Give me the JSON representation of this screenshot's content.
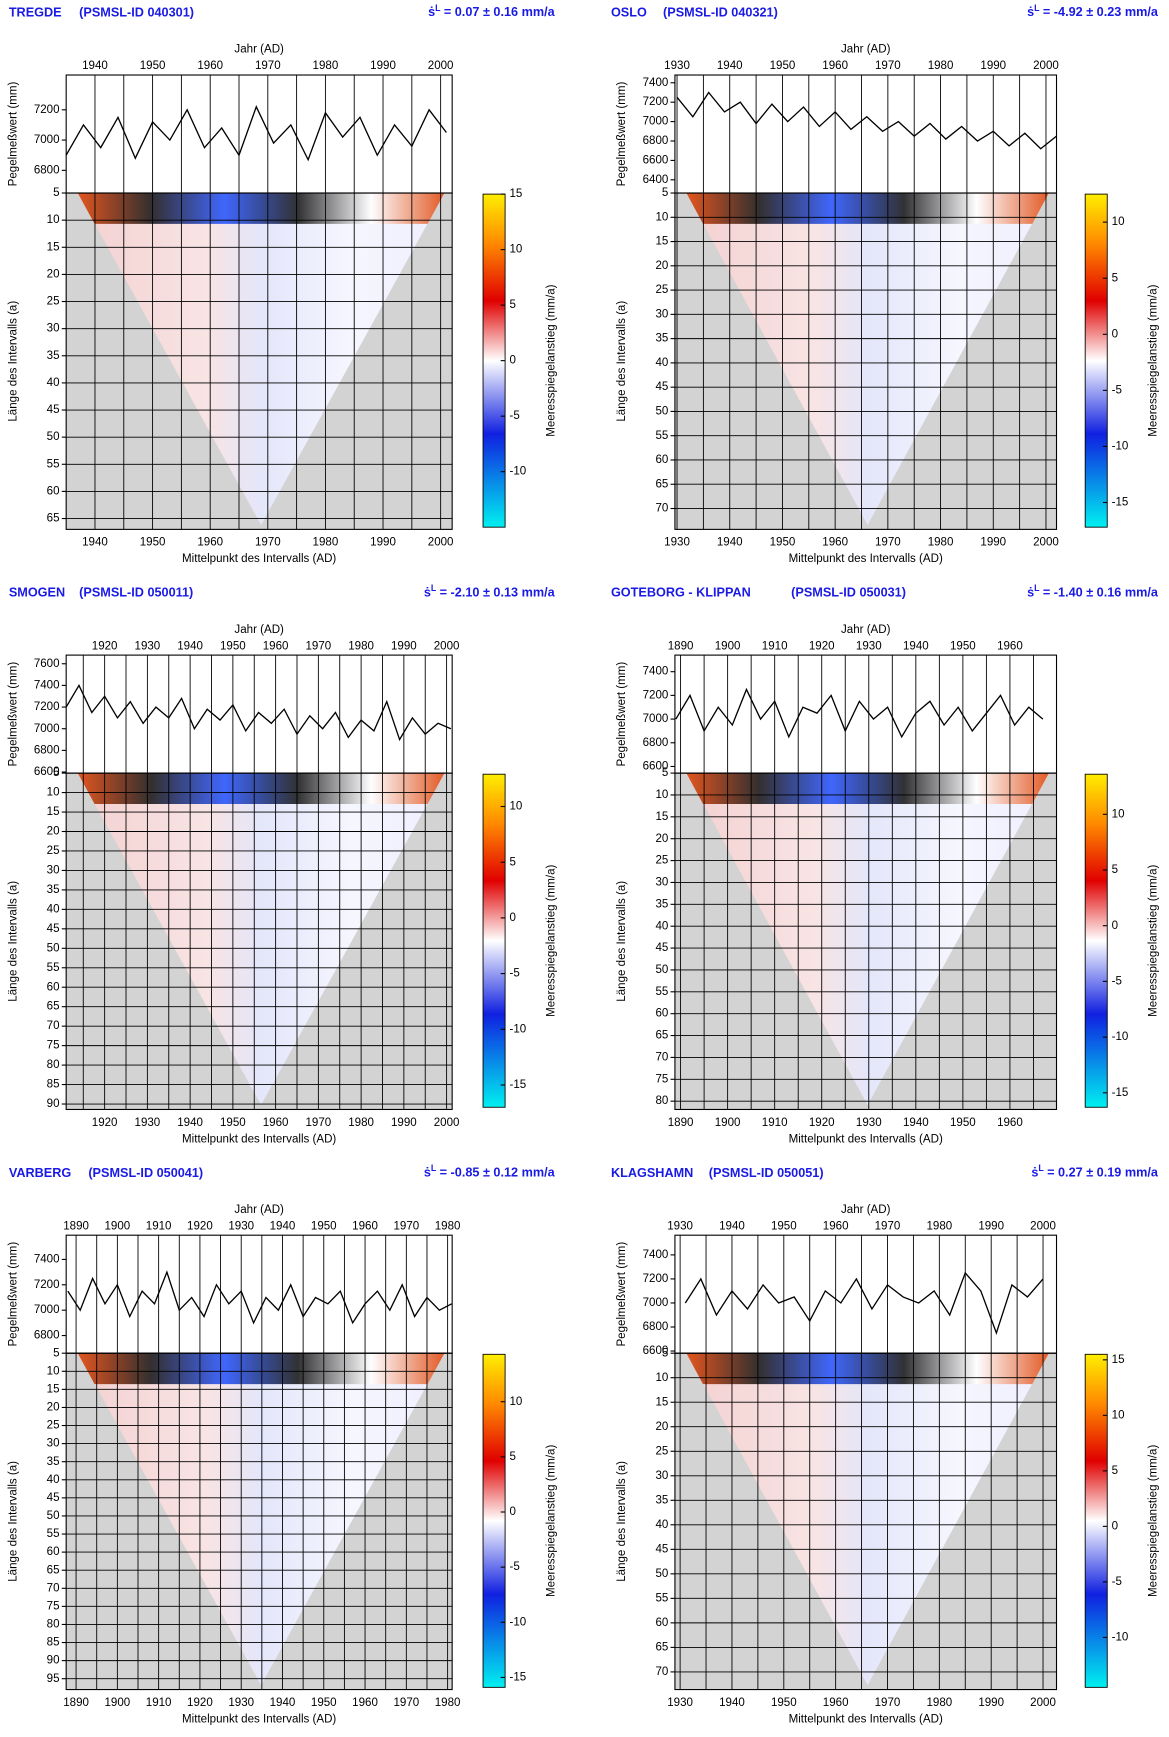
{
  "chart_data": [
    {
      "type": "line",
      "title": "TREGDE",
      "subtitle": "(PSMSL-ID 040301)",
      "trend_symbol": "ṡ",
      "trend_sup": "L",
      "trend_text": "= 0.07 ± 0.16 mm/a",
      "xlabel_top": "Jahr (AD)",
      "xlabel_bottom": "Mittelpunkt des Intervalls (AD)",
      "ylabel": "Pegelmeßwert (mm)",
      "ylabel_interval": "Länge des Intervalls (a)",
      "colorbar_label": "Meeresspiegelanstieg (mm/a)",
      "xlim": [
        1935,
        2002
      ],
      "xticks": [
        1940,
        1950,
        1960,
        1970,
        1980,
        1990,
        2000
      ],
      "ylim": [
        6650,
        7430
      ],
      "yticks": [
        6800,
        7000,
        7200
      ],
      "interval_ylim": [
        5,
        67
      ],
      "interval_yticks": [
        5,
        10,
        15,
        20,
        25,
        30,
        35,
        40,
        45,
        50,
        55,
        60,
        65
      ],
      "clim": [
        -15,
        15
      ],
      "cticks": [
        15,
        10,
        5,
        0,
        -5,
        -10
      ],
      "grid": true,
      "color": "#000000",
      "x": [
        1935,
        1938,
        1941,
        1944,
        1947,
        1950,
        1953,
        1956,
        1959,
        1962,
        1965,
        1968,
        1971,
        1974,
        1977,
        1980,
        1983,
        1986,
        1989,
        1992,
        1995,
        1998,
        2001
      ],
      "values": [
        6900,
        7100,
        6950,
        7150,
        6880,
        7120,
        7000,
        7200,
        6950,
        7080,
        6900,
        7220,
        6980,
        7100,
        6870,
        7180,
        7020,
        7150,
        6900,
        7100,
        6960,
        7200,
        7050
      ]
    },
    {
      "type": "line",
      "title": "OSLO",
      "subtitle": "(PSMSL-ID 040321)",
      "trend_symbol": "ṡ",
      "trend_sup": "L",
      "trend_text": "= -4.92 ± 0.23 mm/a",
      "xlabel_top": "Jahr (AD)",
      "xlabel_bottom": "Mittelpunkt des Intervalls (AD)",
      "ylabel": "Pegelmeßwert (mm)",
      "ylabel_interval": "Länge des Intervalls (a)",
      "colorbar_label": "Meeresspiegelanstieg (mm/a)",
      "xlim": [
        1929.6,
        2002
      ],
      "xticks": [
        1930,
        1940,
        1950,
        1960,
        1970,
        1980,
        1990,
        2000
      ],
      "ylim": [
        6264,
        7480
      ],
      "yticks": [
        6400,
        6600,
        6800,
        7000,
        7200,
        7400
      ],
      "interval_ylim": [
        5,
        74.3
      ],
      "interval_yticks": [
        5,
        10,
        15,
        20,
        25,
        30,
        35,
        40,
        45,
        50,
        55,
        60,
        65,
        70
      ],
      "clim": [
        -17.2,
        12.5
      ],
      "cticks": [
        10,
        5,
        0,
        -5,
        -10,
        -15
      ],
      "grid": true,
      "color": "#000000",
      "x": [
        1930,
        1933,
        1936,
        1939,
        1942,
        1945,
        1948,
        1951,
        1954,
        1957,
        1960,
        1963,
        1966,
        1969,
        1972,
        1975,
        1978,
        1981,
        1984,
        1987,
        1990,
        1993,
        1996,
        1999,
        2002
      ],
      "values": [
        7250,
        7050,
        7300,
        7100,
        7200,
        6980,
        7180,
        7000,
        7150,
        6950,
        7100,
        6920,
        7050,
        6900,
        7000,
        6850,
        6980,
        6820,
        6950,
        6800,
        6900,
        6750,
        6880,
        6720,
        6850
      ]
    },
    {
      "type": "line",
      "title": "SMOGEN",
      "subtitle": "(PSMSL-ID 050011)",
      "trend_symbol": "ṡ",
      "trend_sup": "L",
      "trend_text": "= -2.10 ± 0.13 mm/a",
      "xlabel_top": "Jahr (AD)",
      "xlabel_bottom": "Mittelpunkt des Intervalls (AD)",
      "ylabel": "Pegelmeßwert (mm)",
      "ylabel_interval": "Länge des Intervalls (a)",
      "colorbar_label": "Meeresspiegelanstieg (mm/a)",
      "xlim": [
        1911,
        2001.3
      ],
      "xticks": [
        1920,
        1930,
        1940,
        1950,
        1960,
        1970,
        1980,
        1990,
        2000
      ],
      "ylim": [
        6590,
        7680
      ],
      "yticks": [
        6600,
        6800,
        7000,
        7200,
        7400,
        7600
      ],
      "interval_ylim": [
        5,
        91.4
      ],
      "interval_yticks": [
        5,
        10,
        15,
        20,
        25,
        30,
        35,
        40,
        45,
        50,
        55,
        60,
        65,
        70,
        75,
        80,
        85,
        90
      ],
      "clim": [
        -17,
        12.9
      ],
      "cticks": [
        10,
        5,
        0,
        -5,
        -10,
        -15
      ],
      "grid": true,
      "color": "#000000",
      "x": [
        1911,
        1914,
        1917,
        1920,
        1923,
        1926,
        1929,
        1932,
        1935,
        1938,
        1941,
        1944,
        1947,
        1950,
        1953,
        1956,
        1959,
        1962,
        1965,
        1968,
        1971,
        1974,
        1977,
        1980,
        1983,
        1986,
        1989,
        1992,
        1995,
        1998,
        2001
      ],
      "values": [
        7200,
        7400,
        7150,
        7300,
        7100,
        7250,
        7050,
        7200,
        7100,
        7280,
        7000,
        7180,
        7080,
        7220,
        6980,
        7150,
        7050,
        7180,
        6950,
        7120,
        7000,
        7150,
        6920,
        7080,
        6980,
        7250,
        6900,
        7100,
        6950,
        7050,
        7000
      ]
    },
    {
      "type": "line",
      "title": "GOTEBORG - KLIPPAN",
      "subtitle": "(PSMSL-ID 050031)",
      "trend_symbol": "ṡ",
      "trend_sup": "L",
      "trend_text": "= -1.40 ± 0.16 mm/a",
      "xlabel_top": "Jahr (AD)",
      "xlabel_bottom": "Mittelpunkt des Intervalls (AD)",
      "ylabel": "Pegelmeßwert (mm)",
      "ylabel_interval": "Länge des Intervalls (a)",
      "colorbar_label": "Meeresspiegelanstieg (mm/a)",
      "xlim": [
        1888.8,
        1969.9
      ],
      "xticks": [
        1890,
        1900,
        1910,
        1920,
        1930,
        1940,
        1950,
        1960
      ],
      "ylim": [
        6544,
        7540
      ],
      "yticks": [
        6600,
        6800,
        7000,
        7200,
        7400
      ],
      "interval_ylim": [
        5,
        81.9
      ],
      "interval_yticks": [
        5,
        10,
        15,
        20,
        25,
        30,
        35,
        40,
        45,
        50,
        55,
        60,
        65,
        70,
        75,
        80
      ],
      "clim": [
        -16.3,
        13.6
      ],
      "cticks": [
        10,
        5,
        0,
        -5,
        -10,
        -15
      ],
      "grid": true,
      "color": "#000000",
      "x": [
        1889,
        1892,
        1895,
        1898,
        1901,
        1904,
        1907,
        1910,
        1913,
        1916,
        1919,
        1922,
        1925,
        1928,
        1931,
        1934,
        1937,
        1940,
        1943,
        1946,
        1949,
        1952,
        1955,
        1958,
        1961,
        1964,
        1967
      ],
      "values": [
        7000,
        7200,
        6900,
        7100,
        6950,
        7250,
        7000,
        7150,
        6850,
        7100,
        7050,
        7200,
        6900,
        7150,
        7000,
        7100,
        6850,
        7050,
        7150,
        6950,
        7100,
        6900,
        7050,
        7200,
        6950,
        7100,
        7000
      ]
    },
    {
      "type": "line",
      "title": "VARBERG",
      "subtitle": "(PSMSL-ID 050041)",
      "trend_symbol": "ṡ",
      "trend_sup": "L",
      "trend_text": "= -0.85 ± 0.12 mm/a",
      "xlabel_top": "Jahr (AD)",
      "xlabel_bottom": "Mittelpunkt des Intervalls (AD)",
      "ylabel": "Pegelmeßwert (mm)",
      "ylabel_interval": "Länge des Intervalls (a)",
      "colorbar_label": "Meeresspiegelanstieg (mm/a)",
      "xlim": [
        1887.6,
        1981.1
      ],
      "xticks": [
        1890,
        1900,
        1910,
        1920,
        1930,
        1940,
        1950,
        1960,
        1970,
        1980
      ],
      "ylim": [
        6661,
        7591
      ],
      "yticks": [
        6800,
        7000,
        7200,
        7400
      ],
      "interval_ylim": [
        5,
        98
      ],
      "interval_yticks": [
        5,
        10,
        15,
        20,
        25,
        30,
        35,
        40,
        45,
        50,
        55,
        60,
        65,
        70,
        75,
        80,
        85,
        90,
        95
      ],
      "clim": [
        -15.9,
        14.3
      ],
      "cticks": [
        10,
        5,
        0,
        -5,
        -10,
        -15
      ],
      "grid": true,
      "color": "#000000",
      "x": [
        1888,
        1891,
        1894,
        1897,
        1900,
        1903,
        1906,
        1909,
        1912,
        1915,
        1918,
        1921,
        1924,
        1927,
        1930,
        1933,
        1936,
        1939,
        1942,
        1945,
        1948,
        1951,
        1954,
        1957,
        1960,
        1963,
        1966,
        1969,
        1972,
        1975,
        1978,
        1981
      ],
      "values": [
        7150,
        7000,
        7250,
        7050,
        7200,
        6950,
        7150,
        7050,
        7300,
        7000,
        7100,
        6950,
        7200,
        7050,
        7150,
        6900,
        7100,
        7000,
        7200,
        6950,
        7100,
        7050,
        7150,
        6900,
        7050,
        7150,
        7000,
        7200,
        6950,
        7100,
        7000,
        7050
      ]
    },
    {
      "type": "line",
      "title": "KLAGSHAMN",
      "subtitle": "(PSMSL-ID 050051)",
      "trend_symbol": "ṡ",
      "trend_sup": "L",
      "trend_text": "= 0.27 ± 0.19 mm/a",
      "xlabel_top": "Jahr (AD)",
      "xlabel_bottom": "Mittelpunkt des Intervalls (AD)",
      "ylabel": "Pegelmeßwert (mm)",
      "ylabel_interval": "Länge des Intervalls (a)",
      "colorbar_label": "Meeresspiegelanstieg (mm/a)",
      "xlim": [
        1929,
        2002.6
      ],
      "xticks": [
        1930,
        1940,
        1950,
        1960,
        1970,
        1980,
        1990,
        2000
      ],
      "ylim": [
        6582,
        7564
      ],
      "yticks": [
        6600,
        6800,
        7000,
        7200,
        7400
      ],
      "interval_ylim": [
        5,
        73.6
      ],
      "interval_yticks": [
        5,
        10,
        15,
        20,
        25,
        30,
        35,
        40,
        45,
        50,
        55,
        60,
        65,
        70
      ],
      "clim": [
        -14.5,
        15.5
      ],
      "cticks": [
        15,
        10,
        5,
        0,
        -5,
        -10
      ],
      "grid": true,
      "color": "#000000",
      "x": [
        1931,
        1934,
        1937,
        1940,
        1943,
        1946,
        1949,
        1952,
        1955,
        1958,
        1961,
        1964,
        1967,
        1970,
        1973,
        1976,
        1979,
        1982,
        1985,
        1988,
        1991,
        1994,
        1997,
        2000
      ],
      "values": [
        7000,
        7200,
        6900,
        7100,
        6950,
        7150,
        7000,
        7050,
        6850,
        7100,
        7000,
        7200,
        6950,
        7150,
        7050,
        7000,
        7100,
        6900,
        7250,
        7100,
        6750,
        7150,
        7050,
        7200
      ]
    }
  ]
}
